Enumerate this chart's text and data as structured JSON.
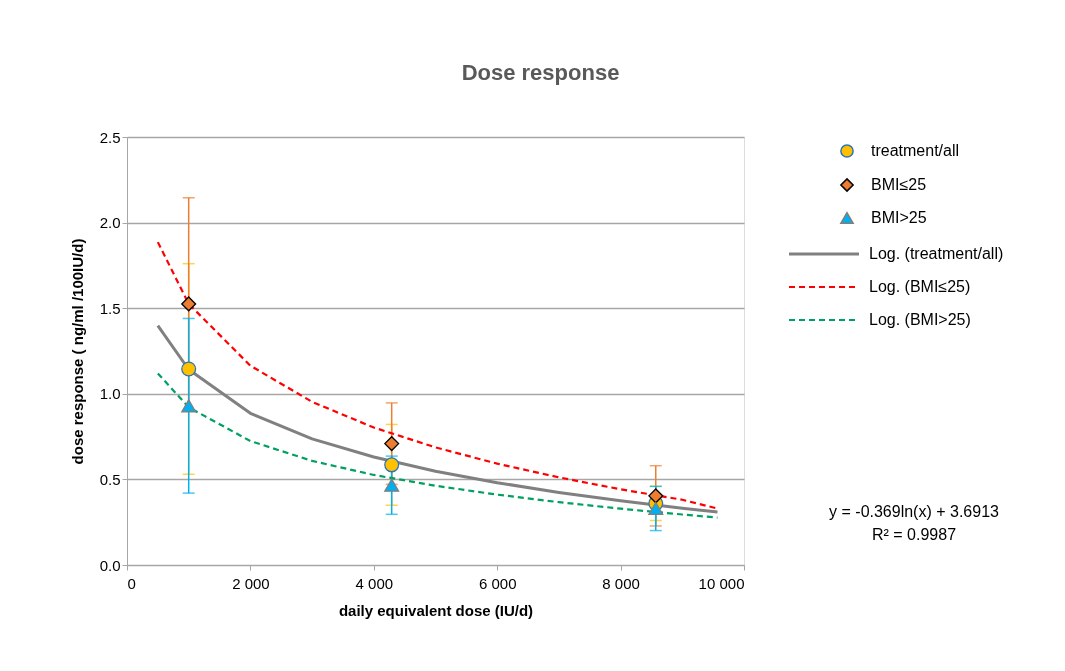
{
  "chart_data": {
    "type": "scatter",
    "title": "Dose response",
    "xlabel": "daily equivalent dose (IU/d)",
    "ylabel": "dose response ( ng/ml /100IU/d)",
    "x": [
      1000,
      4290,
      8570
    ],
    "series": [
      {
        "name": "treatment/all",
        "color": "#ffc000",
        "marker": "circle",
        "values": [
          1.145,
          0.585,
          0.36
        ],
        "errors": [
          0.615,
          0.236,
          0.1
        ]
      },
      {
        "name": "BMI≤25",
        "color": "#ed7d31",
        "marker": "diamond",
        "values": [
          1.525,
          0.709,
          0.404
        ],
        "errors": [
          0.62,
          0.238,
          0.176
        ]
      },
      {
        "name": "BMI>25",
        "color": "#00b0f0",
        "marker": "triangle",
        "values": [
          0.93,
          0.466,
          0.33
        ],
        "errors": [
          0.51,
          0.17,
          0.129
        ]
      },
      {
        "name": "Log. (treatment/all)",
        "type": "line",
        "color": "#808080",
        "line_style": "solid",
        "marker": "none",
        "x": [
          500,
          1000,
          2000,
          3000,
          4000,
          5000,
          6000,
          7000,
          8000,
          9000,
          9570
        ],
        "values": [
          1.398,
          1.142,
          0.886,
          0.737,
          0.631,
          0.548,
          0.481,
          0.424,
          0.375,
          0.332,
          0.309
        ]
      },
      {
        "name": "Log. (BMI≤25)",
        "type": "line",
        "color": "#ff0000",
        "line_style": "dashed",
        "marker": "none",
        "x": [
          500,
          1000,
          2000,
          3000,
          4000,
          5000,
          6000,
          7000,
          8000,
          9000,
          9570
        ],
        "values": [
          1.886,
          1.525,
          1.164,
          0.953,
          0.803,
          0.687,
          0.592,
          0.512,
          0.442,
          0.381,
          0.33
        ]
      },
      {
        "name": "Log. (BMI>25)",
        "type": "line",
        "color": "#00a060",
        "line_style": "dashed",
        "marker": "none",
        "x": [
          500,
          1000,
          2000,
          3000,
          4000,
          5000,
          6000,
          7000,
          8000,
          9000,
          9570
        ],
        "values": [
          1.119,
          0.921,
          0.724,
          0.608,
          0.526,
          0.463,
          0.411,
          0.367,
          0.329,
          0.295,
          0.277
        ]
      }
    ],
    "xlim": [
      0,
      10000
    ],
    "xticks": [
      0,
      {
        "value": 2000,
        "label": "2 000"
      },
      {
        "value": 4000,
        "label": "4 000"
      },
      {
        "value": 6000,
        "label": "6 000"
      },
      {
        "value": 8000,
        "label": "8 000"
      },
      {
        "value": 10000,
        "label": "10 000"
      }
    ],
    "ylim": [
      0,
      2.5
    ],
    "yticks": [
      {
        "value": 0,
        "label": "0.0"
      },
      {
        "value": 0.5,
        "label": "0.5"
      },
      {
        "value": 1,
        "label": "1.0"
      },
      {
        "value": 1.5,
        "label": "1.5"
      },
      {
        "value": 2,
        "label": "2.0"
      },
      {
        "value": 2.5,
        "label": "2.5"
      }
    ],
    "grid": "y",
    "legend": "right",
    "annotations": [
      "y = -0.369ln(x) + 3.6913",
      "R² = 0.9987"
    ]
  }
}
